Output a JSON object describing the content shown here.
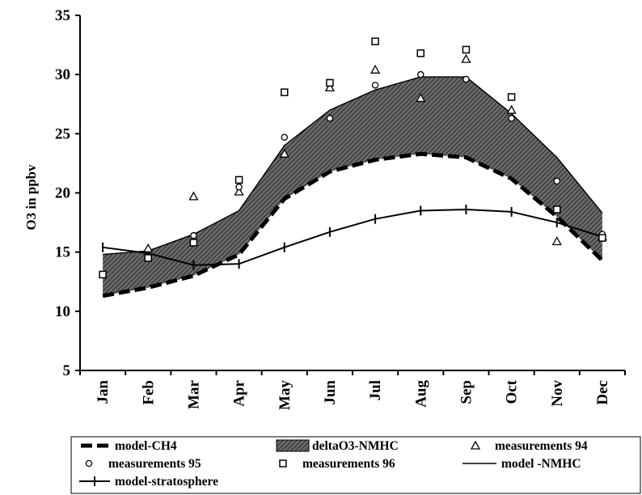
{
  "chart_data": {
    "type": "line",
    "title": "",
    "xlabel": "",
    "ylabel": "O3 in ppbv",
    "ylim": [
      5,
      35
    ],
    "yticks": [
      5,
      10,
      15,
      20,
      25,
      30,
      35
    ],
    "categories": [
      "Jan",
      "Feb",
      "Mar",
      "Apr",
      "May",
      "Jun",
      "Jul",
      "Aug",
      "Sep",
      "Oct",
      "Nov",
      "Dec"
    ],
    "grid": false,
    "legend_position": "bottom",
    "series": [
      {
        "name": "model-CH4",
        "style": "thick-dashed",
        "values": [
          11.3,
          12.0,
          13.0,
          14.8,
          19.5,
          21.8,
          22.8,
          23.3,
          23.0,
          21.2,
          18.0,
          14.3
        ]
      },
      {
        "name": "model -NMHC",
        "style": "thin-line",
        "values": [
          14.8,
          15.1,
          16.5,
          18.5,
          24.0,
          27.0,
          28.7,
          29.8,
          29.8,
          26.7,
          23.0,
          18.3
        ]
      },
      {
        "name": "model-stratosphere",
        "style": "line-plus",
        "values": [
          15.4,
          14.9,
          13.9,
          14.0,
          15.4,
          16.7,
          17.8,
          18.5,
          18.6,
          18.4,
          17.5,
          16.3
        ]
      },
      {
        "name": "deltaO3-NMHC",
        "style": "band",
        "lower": "model-CH4",
        "upper": "model -NMHC"
      },
      {
        "name": "measurements 94",
        "style": "triangle",
        "values": [
          null,
          15.3,
          19.7,
          20.1,
          23.3,
          28.9,
          30.4,
          28.0,
          31.3,
          27.0,
          15.9,
          16.3
        ]
      },
      {
        "name": "measurements 95",
        "style": "circle",
        "values": [
          null,
          14.5,
          16.4,
          20.5,
          24.7,
          26.3,
          29.1,
          30.0,
          29.6,
          26.3,
          21.0,
          16.5
        ]
      },
      {
        "name": "measurements 96",
        "style": "square",
        "values": [
          13.1,
          14.5,
          15.8,
          21.1,
          28.5,
          29.3,
          32.8,
          31.8,
          32.1,
          28.1,
          18.6,
          16.2
        ]
      }
    ],
    "legend": {
      "rows": [
        [
          "model-CH4",
          "deltaO3-NMHC",
          "measurements 94"
        ],
        [
          "measurements 95",
          "measurements 96",
          "model -NMHC"
        ],
        [
          "model-stratosphere"
        ]
      ]
    },
    "colors": {
      "ink": "#000000",
      "band_fill": "#4a4a4a",
      "background": "#ffffff"
    }
  }
}
